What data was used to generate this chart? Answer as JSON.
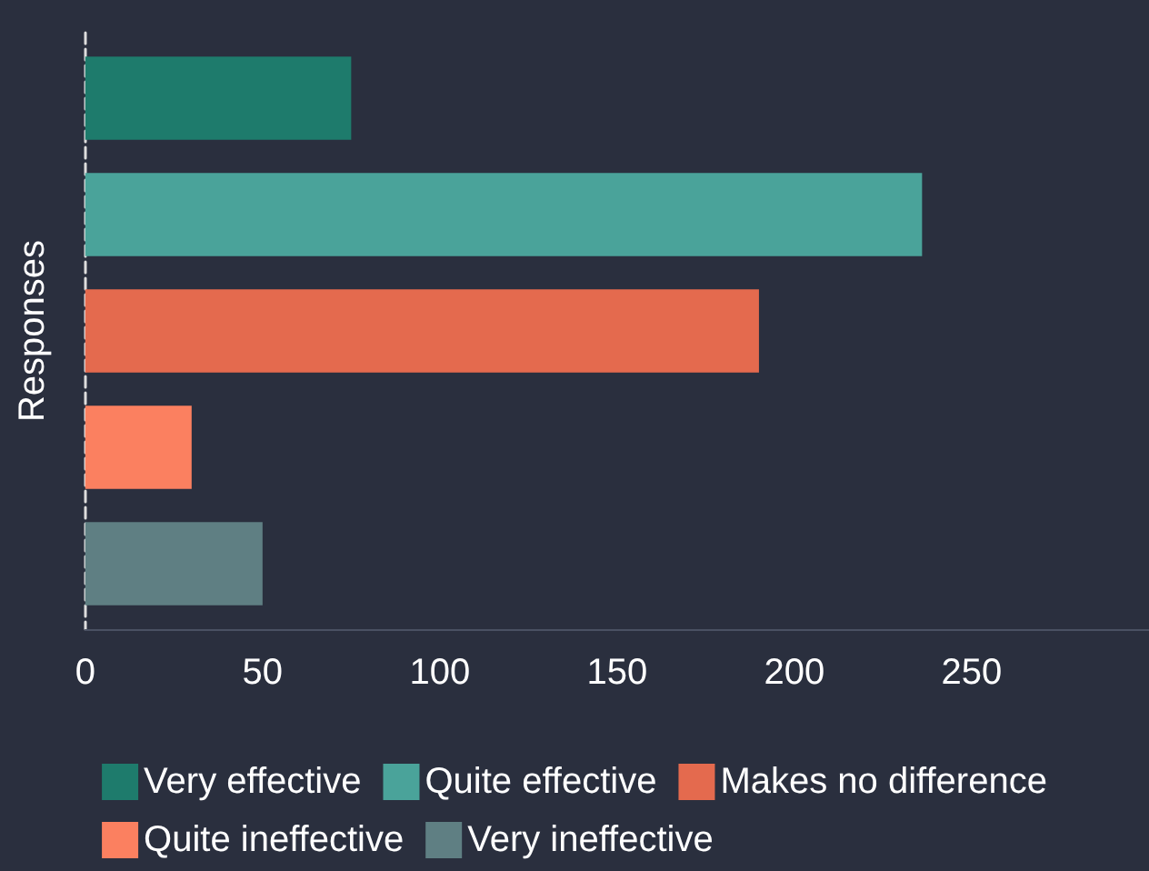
{
  "chart_data": {
    "type": "bar",
    "orientation": "horizontal",
    "categories": [
      null
    ],
    "ylabel": "Responses",
    "series": [
      {
        "name": "Very effective",
        "color": "#1e7b6c",
        "values": [
          75
        ]
      },
      {
        "name": "Quite effective",
        "color": "#4aa39a",
        "values": [
          236
        ]
      },
      {
        "name": "Makes no difference",
        "color": "#e46a4e",
        "values": [
          190
        ]
      },
      {
        "name": "Quite ineffective",
        "color": "#fb8060",
        "values": [
          30
        ]
      },
      {
        "name": "Very ineffective",
        "color": "#5f7f83",
        "values": [
          50
        ]
      }
    ],
    "xlim": [
      0,
      300
    ],
    "xticks": [
      0,
      50,
      100,
      150,
      200,
      250
    ],
    "grid": false,
    "legend": "bottom"
  }
}
